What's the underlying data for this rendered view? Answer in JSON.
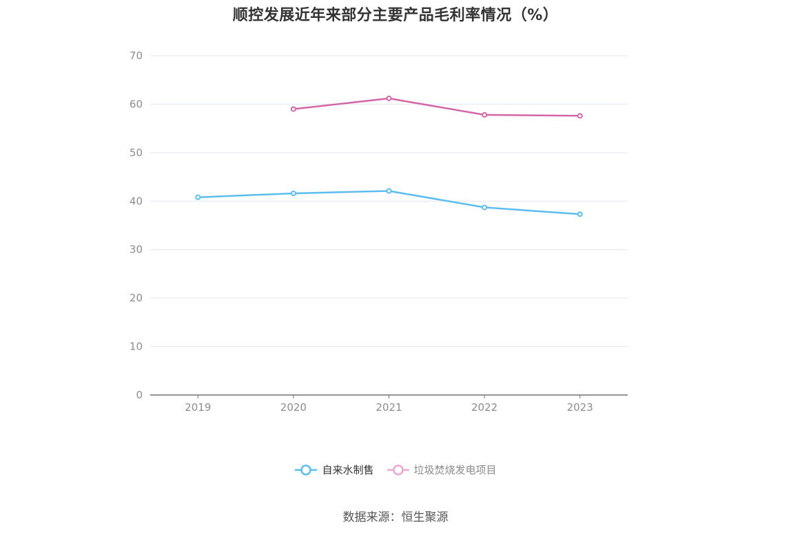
{
  "chart_data": {
    "type": "line",
    "title": "顺控发展近年来部分主要产品毛利率情况（%）",
    "categories": [
      "2019",
      "2020",
      "2021",
      "2022",
      "2023"
    ],
    "ylim": [
      0,
      70
    ],
    "yticks": [
      0,
      10,
      20,
      30,
      40,
      50,
      60,
      70
    ],
    "grid": true,
    "legend_position": "bottom",
    "series": [
      {
        "name": "自来水制售",
        "color": "#5bbcef",
        "values": [
          40.8,
          41.6,
          42.1,
          38.7,
          37.3
        ]
      },
      {
        "name": "垃圾焚烧发电项目",
        "color": "#d466a8",
        "legend_color": "#e8a8cf",
        "values": [
          null,
          59.0,
          61.2,
          57.8,
          57.6
        ]
      }
    ]
  },
  "source": "数据来源：恒生聚源",
  "colors": {
    "axis": "#6e7079",
    "grid": "#e0e6f1",
    "tick_label": "#8c8c8c"
  }
}
